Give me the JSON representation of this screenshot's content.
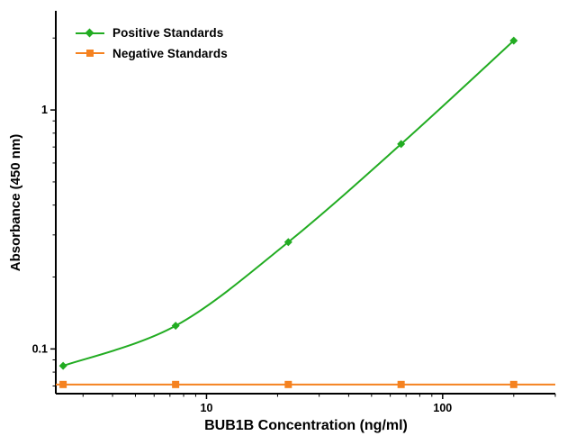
{
  "figure": {
    "background": "#ffffff"
  },
  "chart_data": {
    "type": "line",
    "title": "",
    "xlabel": "BUB1B Concentration (ng/ml)",
    "ylabel": "Absorbance (450 nm)",
    "x_scale": "log",
    "y_scale": "log",
    "xlim": [
      2.3,
      300
    ],
    "ylim": [
      0.065,
      2.6
    ],
    "grid": false,
    "legend_position": "top-left",
    "axis_color": "#000000",
    "x_ticks": [
      "10",
      "100"
    ],
    "y_ticks": [
      "1",
      "0.1"
    ],
    "x_tick_values": [
      10,
      100
    ],
    "y_tick_values": [
      1,
      0.1
    ],
    "x_minor_ticks": [
      3,
      4,
      5,
      6,
      7,
      8,
      9,
      20,
      30,
      40,
      50,
      60,
      70,
      80,
      90,
      200,
      300
    ],
    "y_minor_ticks": [
      0.07,
      0.08,
      0.09,
      0.2,
      0.3,
      0.4,
      0.5,
      0.6,
      0.7,
      0.8,
      0.9,
      2
    ],
    "x": [
      2.47,
      7.4,
      22.2,
      66.7,
      200
    ],
    "series": [
      {
        "name": "Positive Standards",
        "values": [
          0.085,
          0.125,
          0.28,
          0.72,
          1.95
        ],
        "color": "#22ac22",
        "marker": "diamond",
        "line_span": "data"
      },
      {
        "name": "Negative Standards",
        "values": [
          0.071,
          0.071,
          0.071,
          0.071,
          0.071
        ],
        "color": "#f58220",
        "marker": "square",
        "line_span": "full"
      }
    ]
  }
}
